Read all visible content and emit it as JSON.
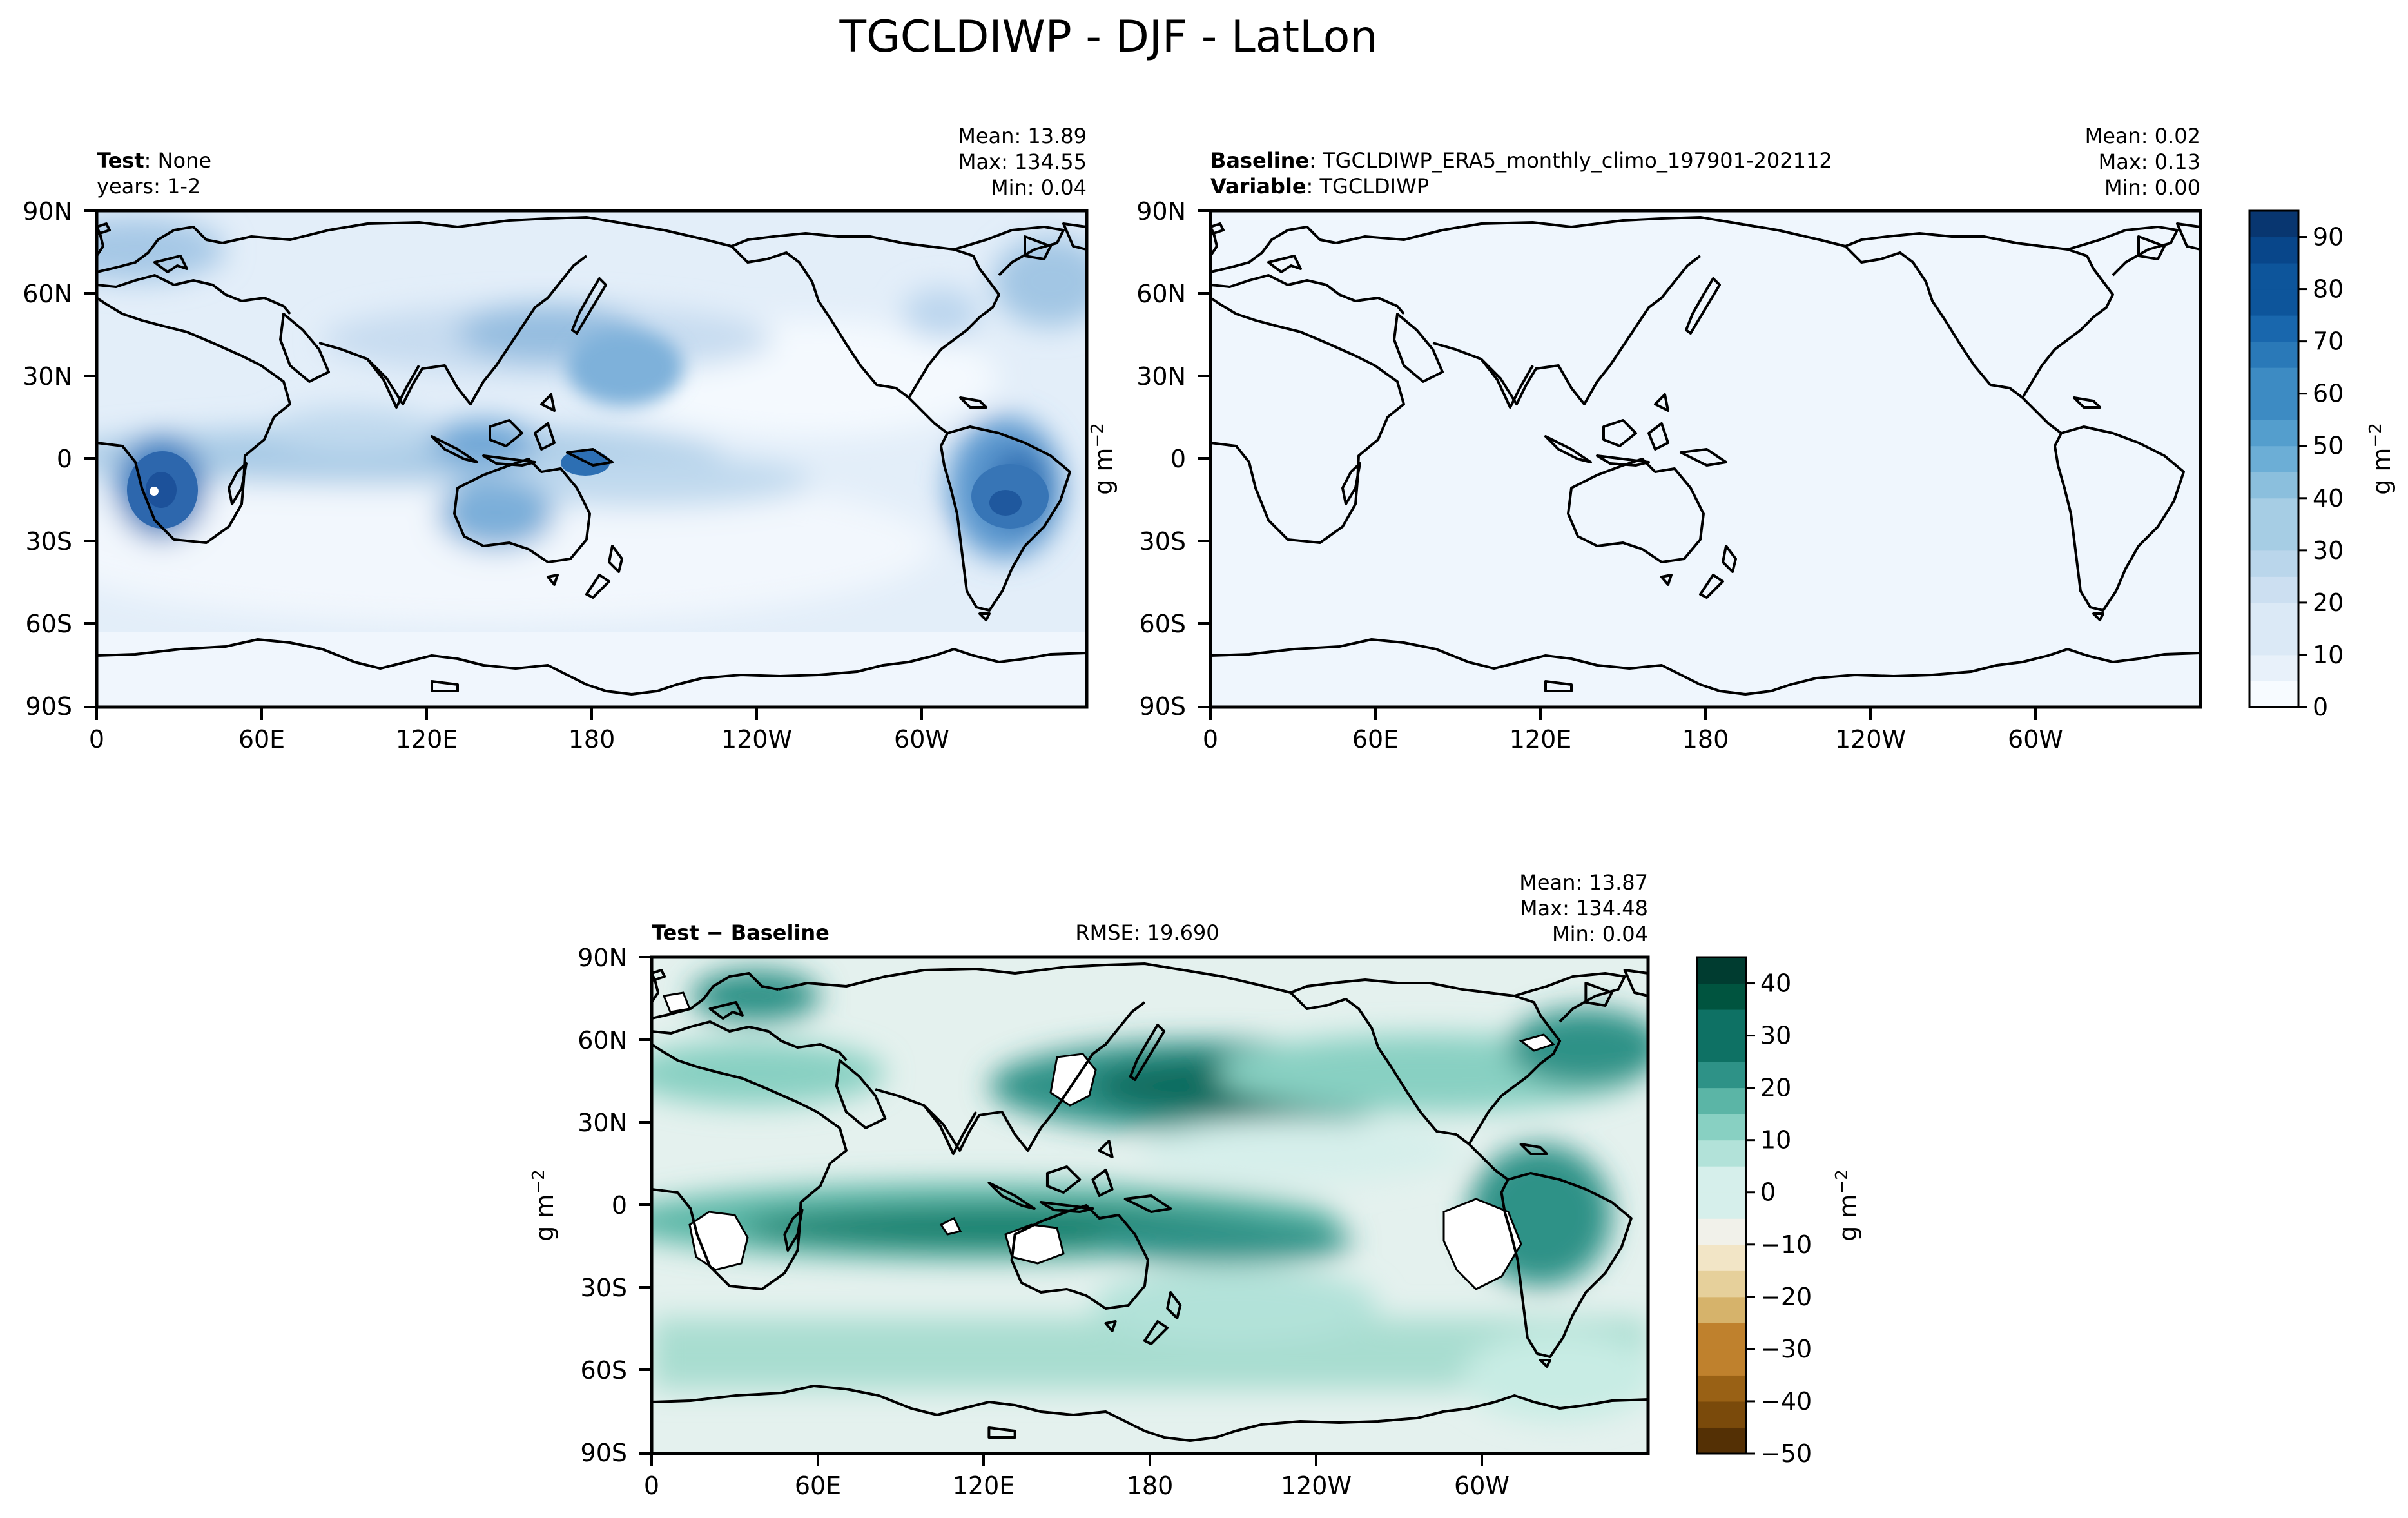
{
  "figure_title": "TGCLDIWP - DJF - LatLon",
  "colors": {
    "ocean_light": "#eef5fc",
    "coast": "#000000",
    "cmap_blues": [
      "#f7fbff",
      "#e8f1fa",
      "#dbe9f6",
      "#ccdff1",
      "#bad6eb",
      "#a6cde4",
      "#8bbfdd",
      "#6caed6",
      "#549ecd",
      "#3d8bc3",
      "#2a79b8",
      "#1967ad",
      "#0d559b",
      "#08468a",
      "#083670"
    ],
    "cmap_brbg": [
      "#543005",
      "#7a4a0b",
      "#996115",
      "#bf812d",
      "#d6b36b",
      "#e6d09b",
      "#f2e5c6",
      "#f1f1ea",
      "#d6efeb",
      "#b2e2d9",
      "#88d0c2",
      "#5bb5a6",
      "#2e9287",
      "#0e7164",
      "#00543f",
      "#003c30"
    ]
  },
  "chart_data": [
    {
      "type": "heatmap",
      "panel": "test",
      "title_bold": "Test",
      "title_rest": ": None",
      "subtitle": "years: 1-2",
      "stats": [
        "Mean: 13.89",
        "Max: 134.55",
        "Min:  0.04"
      ],
      "xlabel": "",
      "ylabel": "",
      "x_ticks": [
        "0",
        "60E",
        "120E",
        "180",
        "120W",
        "60W"
      ],
      "y_ticks": [
        "90N",
        "60N",
        "30N",
        "0",
        "30S",
        "60S",
        "90S"
      ],
      "xlim": [
        0,
        360
      ],
      "ylim": [
        -90,
        90
      ],
      "colormap": "Blues",
      "stats_values": {
        "mean": 13.89,
        "max": 134.55,
        "min": 0.04
      }
    },
    {
      "type": "heatmap",
      "panel": "baseline",
      "title_bold": "Baseline",
      "title_rest": ": TGCLDIWP_ERA5_monthly_climo_197901-202112",
      "title2_bold": "Variable",
      "title2_rest": ": TGCLDIWP",
      "stats": [
        "Mean:  0.02",
        "Max:  0.13",
        "Min:  0.00"
      ],
      "x_ticks": [
        "0",
        "60E",
        "120E",
        "180",
        "120W",
        "60W"
      ],
      "y_ticks": [
        "90N",
        "60N",
        "30N",
        "0",
        "30S",
        "60S",
        "90S"
      ],
      "xlim": [
        0,
        360
      ],
      "ylim": [
        -90,
        90
      ],
      "ylabel": "g m",
      "ylabel_exp": "−2",
      "colormap": "Blues",
      "stats_values": {
        "mean": 0.02,
        "max": 0.13,
        "min": 0.0
      }
    },
    {
      "type": "heatmap",
      "panel": "difference",
      "title_bold": "Test − Baseline",
      "rmse": "RMSE: 19.690",
      "stats": [
        "Mean: 13.87",
        "Max: 134.48",
        "Min:  0.04"
      ],
      "x_ticks": [
        "0",
        "60E",
        "120E",
        "180",
        "120W",
        "60W"
      ],
      "y_ticks": [
        "90N",
        "60N",
        "30N",
        "0",
        "30S",
        "60S",
        "90S"
      ],
      "xlim": [
        0,
        360
      ],
      "ylim": [
        -90,
        90
      ],
      "ylabel": "g m",
      "ylabel_exp": "−2",
      "colormap": "BrBG",
      "stats_values": {
        "mean": 13.87,
        "max": 134.48,
        "min": 0.04,
        "rmse": 19.69
      }
    }
  ],
  "colorbars": {
    "main": {
      "min": 0,
      "max": 95,
      "levels": 19,
      "tick_values": [
        0,
        10,
        20,
        30,
        40,
        50,
        60,
        70,
        80,
        90
      ],
      "tick_labels": [
        "0",
        "10",
        "20",
        "30",
        "40",
        "50",
        "60",
        "70",
        "80",
        "90"
      ],
      "label": "g m",
      "label_exp": "−2"
    },
    "diff": {
      "min": -50,
      "max": 45,
      "levels": 19,
      "tick_values": [
        -50,
        -40,
        -30,
        -20,
        -10,
        0,
        10,
        20,
        30,
        40
      ],
      "tick_labels": [
        "−50",
        "−40",
        "−30",
        "−20",
        "−10",
        "0",
        "10",
        "20",
        "30",
        "40"
      ],
      "label": "g m",
      "label_exp": "−2"
    }
  }
}
